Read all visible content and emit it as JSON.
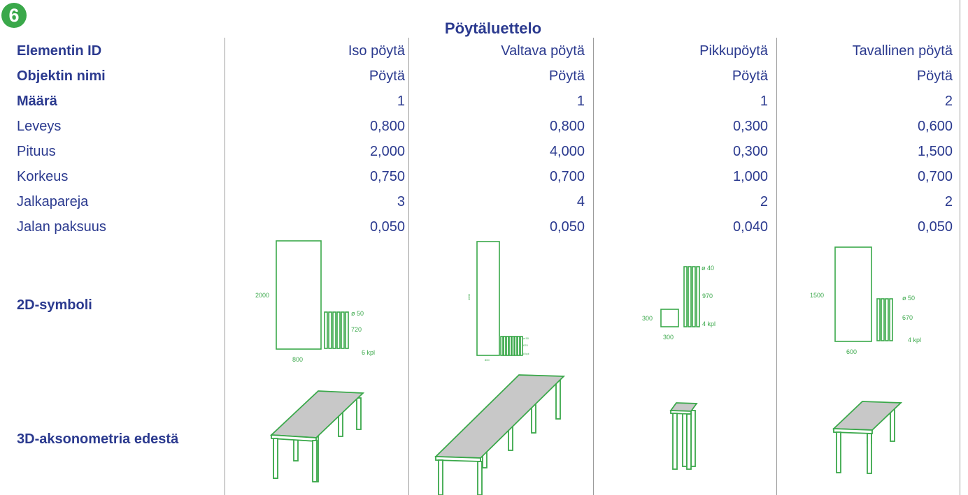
{
  "badge": "6",
  "title": "Pöytäluettelo",
  "rows": [
    {
      "label": "Elementin ID",
      "bold": true,
      "values": [
        "Iso pöytä",
        "Valtava pöytä",
        "Pikkupöytä",
        "Tavallinen pöytä"
      ]
    },
    {
      "label": "Objektin nimi",
      "bold": true,
      "values": [
        "Pöytä",
        "Pöytä",
        "Pöytä",
        "Pöytä"
      ]
    },
    {
      "label": "Määrä",
      "bold": true,
      "values": [
        "1",
        "1",
        "1",
        "2"
      ]
    },
    {
      "label": "Leveys",
      "bold": false,
      "values": [
        "0,800",
        "0,800",
        "0,300",
        "0,600"
      ]
    },
    {
      "label": "Pituus",
      "bold": false,
      "values": [
        "2,000",
        "4,000",
        "0,300",
        "1,500"
      ]
    },
    {
      "label": "Korkeus",
      "bold": false,
      "values": [
        "0,750",
        "0,700",
        "1,000",
        "0,700"
      ]
    },
    {
      "label": "Jalkapareja",
      "bold": false,
      "values": [
        "3",
        "4",
        "2",
        "2"
      ]
    },
    {
      "label": "Jalan paksuus",
      "bold": false,
      "values": [
        "0,050",
        "0,050",
        "0,040",
        "0,050"
      ]
    }
  ],
  "symbol_label": "2D-symboli",
  "axo_label": "3D-aksonometria edestä",
  "symbols": [
    {
      "length": "2000",
      "width": "800",
      "dia": "ø 50",
      "leg_len": "720",
      "count": "6 kpl"
    },
    {
      "length": "4000",
      "width": "800",
      "dia": "ø 50",
      "leg_len": "670",
      "count": "8 kpl"
    },
    {
      "length": "300",
      "width": "300",
      "dia": "ø 40",
      "leg_len": "970",
      "count": "4 kpl"
    },
    {
      "length": "1500",
      "width": "600",
      "dia": "ø 50",
      "leg_len": "670",
      "count": "4 kpl"
    }
  ],
  "colors": {
    "text": "#2b3a8f",
    "accent": "#3aa84a",
    "divider": "#9b9b9b",
    "table_top": "#c8c8c8"
  }
}
